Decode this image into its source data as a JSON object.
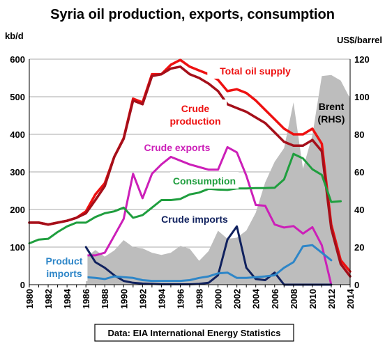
{
  "chart_data": {
    "type": "line",
    "title": "Syria oil production, exports, consumption",
    "ylabel_left": "kb/d",
    "ylabel_right": "US$/barrel",
    "ylim_left": [
      0,
      600
    ],
    "ylim_right": [
      0,
      120
    ],
    "yticks_left": [
      "0",
      "100",
      "200",
      "300",
      "400",
      "500",
      "600"
    ],
    "yticks_right": [
      "0",
      "20",
      "40",
      "60",
      "80",
      "100",
      "120"
    ],
    "x_range": [
      1980,
      2014
    ],
    "xticks": [
      "1980",
      "1982",
      "1984",
      "1986",
      "1988",
      "1990",
      "1992",
      "1994",
      "1996",
      "1998",
      "2000",
      "2002",
      "2004",
      "2006",
      "2008",
      "2010",
      "2012",
      "2014"
    ],
    "grid": "horizontal",
    "source": "Data: EIA International Energy Statistics",
    "series": [
      {
        "name": "Brent (RHS)",
        "label": [
          "Brent",
          "(RHS)"
        ],
        "axis": "right",
        "kind": "area",
        "color": "#bdbdbd",
        "x": [
          1986,
          1987,
          1988,
          1989,
          1990,
          1991,
          1992,
          1993,
          1994,
          1995,
          1996,
          1997,
          1998,
          1999,
          2000,
          2001,
          2002,
          2003,
          2004,
          2005,
          2006,
          2007,
          2008,
          2009,
          2010,
          2011,
          2012,
          2013,
          2014
        ],
        "values": [
          14.4,
          18.4,
          14.9,
          18.2,
          23.7,
          20.0,
          19.3,
          17.0,
          15.8,
          17.0,
          20.6,
          19.1,
          12.7,
          17.9,
          28.7,
          24.4,
          25.0,
          28.8,
          38.3,
          54.4,
          65.4,
          72.7,
          97.0,
          61.7,
          79.6,
          111.0,
          111.6,
          108.6,
          99.0
        ]
      },
      {
        "name": "Total oil supply",
        "label": [
          "Total oil supply"
        ],
        "axis": "left",
        "color": "#ee1111",
        "width": 3.5,
        "x": [
          1980,
          1981,
          1982,
          1983,
          1984,
          1985,
          1986,
          1987,
          1988,
          1989,
          1990,
          1991,
          1992,
          1993,
          1994,
          1995,
          1996,
          1997,
          1998,
          1999,
          2000,
          2001,
          2002,
          2003,
          2004,
          2005,
          2006,
          2007,
          2008,
          2009,
          2010,
          2011,
          2012,
          2013,
          2014
        ],
        "values": [
          165,
          165,
          160,
          165,
          170,
          178,
          195,
          240,
          270,
          340,
          390,
          495,
          485,
          560,
          560,
          585,
          598,
          580,
          570,
          560,
          545,
          515,
          520,
          510,
          490,
          465,
          440,
          415,
          400,
          400,
          415,
          375,
          160,
          65,
          35
        ]
      },
      {
        "name": "Crude production",
        "label": [
          "Crude",
          "production"
        ],
        "axis": "left",
        "color": "#a50f1a",
        "width": 3.5,
        "x": [
          1980,
          1981,
          1982,
          1983,
          1984,
          1985,
          1986,
          1987,
          1988,
          1989,
          1990,
          1991,
          1992,
          1993,
          1994,
          1995,
          1996,
          1997,
          1998,
          1999,
          2000,
          2001,
          2002,
          2003,
          2004,
          2005,
          2006,
          2007,
          2008,
          2009,
          2010,
          2011,
          2012,
          2013,
          2014
        ],
        "values": [
          165,
          165,
          160,
          165,
          170,
          178,
          190,
          225,
          262,
          340,
          388,
          490,
          480,
          555,
          560,
          575,
          580,
          560,
          550,
          535,
          515,
          480,
          470,
          460,
          445,
          430,
          405,
          380,
          370,
          370,
          385,
          355,
          150,
          55,
          22
        ]
      },
      {
        "name": "Crude exports",
        "label": [
          "Crude exports"
        ],
        "axis": "left",
        "color": "#cc1fb8",
        "width": 3,
        "x": [
          1986,
          1987,
          1988,
          1989,
          1990,
          1991,
          1992,
          1993,
          1994,
          1995,
          1996,
          1997,
          1998,
          1999,
          2000,
          2001,
          2002,
          2003,
          2004,
          2005,
          2006,
          2007,
          2008,
          2009,
          2010,
          2011,
          2012
        ],
        "values": [
          78,
          78,
          85,
          130,
          175,
          295,
          230,
          295,
          320,
          340,
          330,
          320,
          313,
          306,
          306,
          366,
          352,
          290,
          212,
          210,
          160,
          152,
          156,
          136,
          153,
          105,
          0
        ]
      },
      {
        "name": "Consumption",
        "label": [
          "Consumption"
        ],
        "axis": "left",
        "color": "#1f9e3e",
        "width": 3,
        "x": [
          1980,
          1981,
          1982,
          1983,
          1984,
          1985,
          1986,
          1987,
          1988,
          1989,
          1990,
          1991,
          1992,
          1993,
          1994,
          1995,
          1996,
          1997,
          1998,
          1999,
          2000,
          2001,
          2002,
          2003,
          2004,
          2005,
          2006,
          2007,
          2008,
          2009,
          2010,
          2011,
          2012,
          2013
        ],
        "values": [
          110,
          120,
          122,
          140,
          155,
          165,
          165,
          180,
          190,
          195,
          205,
          178,
          185,
          205,
          225,
          225,
          228,
          240,
          245,
          255,
          253,
          252,
          256,
          256,
          257,
          257,
          258,
          280,
          348,
          336,
          307,
          292,
          220,
          222
        ]
      },
      {
        "name": "Crude imports",
        "label": [
          "Crude imports"
        ],
        "axis": "left",
        "color": "#10215e",
        "width": 3,
        "x": [
          1986,
          1987,
          1988,
          1989,
          1990,
          1991,
          1992,
          1993,
          1994,
          1995,
          1996,
          1997,
          1998,
          1999,
          2000,
          2001,
          2002,
          2003,
          2004,
          2005,
          2006,
          2007,
          2008,
          2009,
          2010,
          2011,
          2012
        ],
        "values": [
          100,
          60,
          45,
          25,
          10,
          5,
          3,
          2,
          1,
          1,
          1,
          1,
          2,
          5,
          25,
          120,
          155,
          45,
          15,
          12,
          32,
          0,
          0,
          0,
          0,
          0,
          0
        ]
      },
      {
        "name": "Product imports",
        "label": [
          "Product",
          "imports"
        ],
        "axis": "left",
        "color": "#2e86c8",
        "width": 3,
        "x": [
          1986,
          1987,
          1988,
          1989,
          1990,
          1991,
          1992,
          1993,
          1994,
          1995,
          1996,
          1997,
          1998,
          1999,
          2000,
          2001,
          2002,
          2003,
          2004,
          2005,
          2006,
          2007,
          2008,
          2009,
          2010,
          2011,
          2012
        ],
        "values": [
          20,
          18,
          15,
          22,
          20,
          18,
          12,
          10,
          10,
          10,
          10,
          12,
          18,
          22,
          30,
          32,
          18,
          18,
          20,
          22,
          25,
          45,
          60,
          102,
          105,
          85,
          65
        ]
      }
    ]
  }
}
